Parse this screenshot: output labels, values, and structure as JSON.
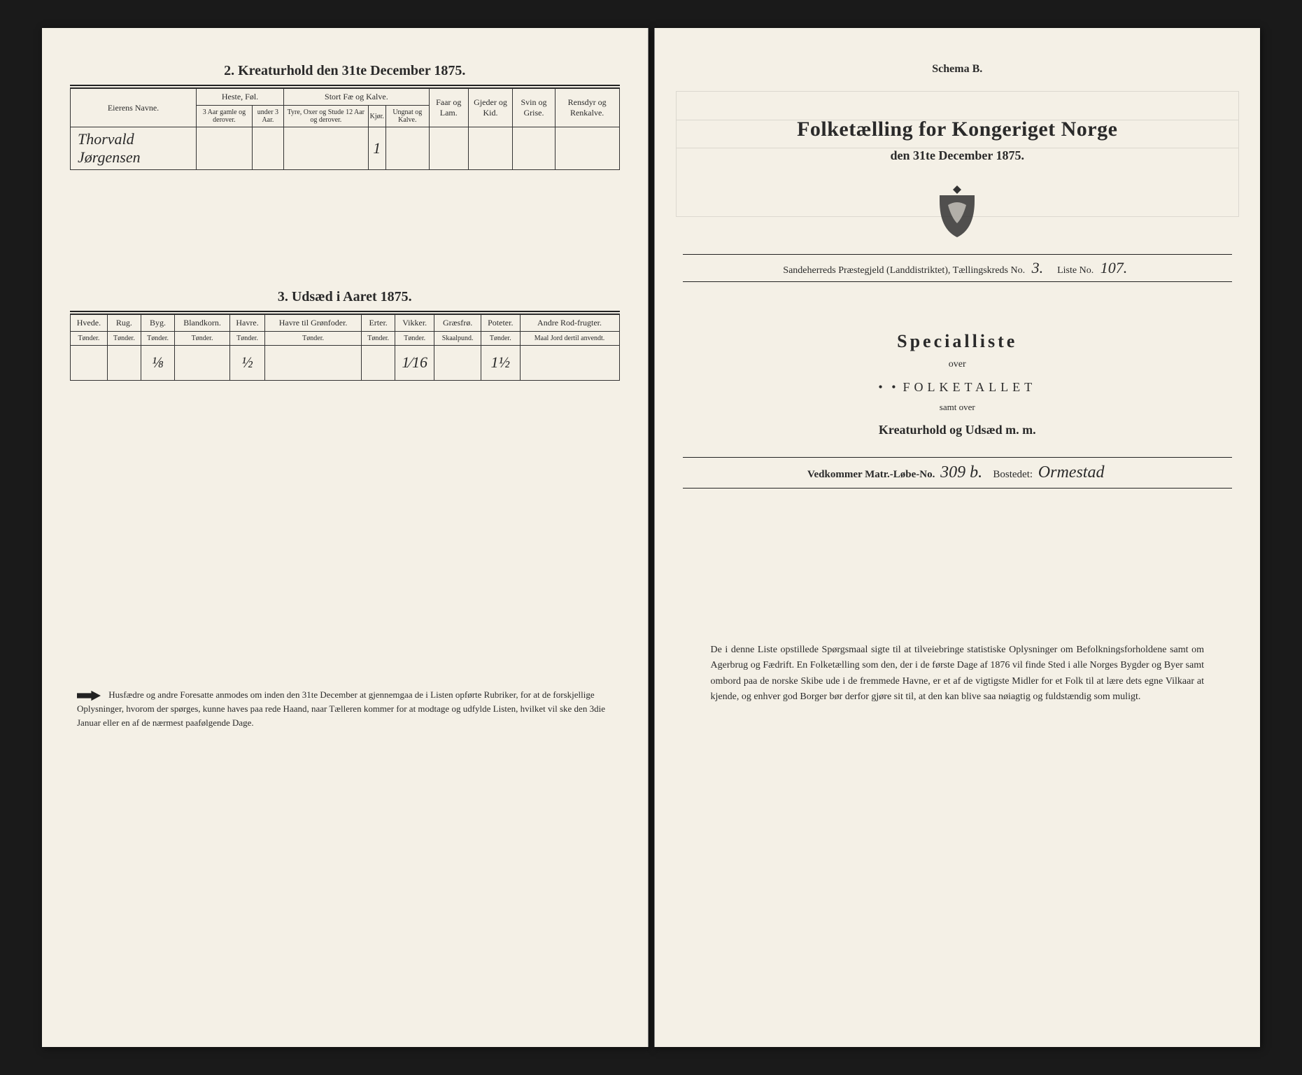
{
  "left": {
    "section2_title": "2.  Kreaturhold den 31te December 1875.",
    "eier_label": "Eierens Navne.",
    "heste_group": "Heste, Føl.",
    "heste_sub1": "3 Aar gamle og derover.",
    "heste_sub2": "under 3 Aar.",
    "stort_group": "Stort Fæ og Kalve.",
    "stort_sub1": "Tyre, Oxer og Stude 12 Aar og derover.",
    "stort_sub2": "Kjør.",
    "stort_sub3": "Ungnat og Kalve.",
    "faar": "Faar og Lam.",
    "gjeder": "Gjeder og Kid.",
    "svin": "Svin og Grise.",
    "rensdyr": "Rensdyr og Renkalve.",
    "owner_name": "Thorvald Jørgensen",
    "kjor_val": "1",
    "section3_title": "3.  Udsæd i Aaret 1875.",
    "crops": [
      {
        "h": "Hvede.",
        "u": "Tønder."
      },
      {
        "h": "Rug.",
        "u": "Tønder."
      },
      {
        "h": "Byg.",
        "u": "Tønder."
      },
      {
        "h": "Blandkorn.",
        "u": "Tønder."
      },
      {
        "h": "Havre.",
        "u": "Tønder."
      },
      {
        "h": "Havre til Grønfoder.",
        "u": "Tønder."
      },
      {
        "h": "Erter.",
        "u": "Tønder."
      },
      {
        "h": "Vikker.",
        "u": "Tønder."
      },
      {
        "h": "Græsfrø.",
        "u": "Skaalpund."
      },
      {
        "h": "Poteter.",
        "u": "Tønder."
      },
      {
        "h": "Andre Rod-frugter.",
        "u": "Maal Jord dertil anvendt."
      }
    ],
    "crop_vals": [
      "",
      "",
      "⅛",
      "",
      "½",
      "",
      "",
      "1⁄16",
      "",
      "1½",
      ""
    ],
    "footnote": "Husfædre og andre Foresatte anmodes om inden den 31te December at gjennemgaa de i Listen opførte Rubriker, for at de forskjellige Oplysninger, hvorom der spørges, kunne haves paa rede Haand, naar Tælleren kommer for at modtage og udfylde Listen, hvilket vil ske den 3die Januar eller en af de nærmest paafølgende Dage."
  },
  "right": {
    "schema": "Schema B.",
    "title1": "Folketælling for Kongeriget Norge",
    "title2": "den 31te December 1875.",
    "meta_prefix": "Sandeherreds Præstegjeld (Landdistriktet), Tællingskreds No.",
    "kreds_no": "3.",
    "liste_label": "Liste No.",
    "liste_no": "107.",
    "special": "Specialliste",
    "over": "over",
    "folket": "Folketallet",
    "samt": "samt over",
    "kreat": "Kreaturhold og Udsæd m. m.",
    "matr_label": "Vedkommer Matr.-Løbe-No.",
    "matr_no": "309 b.",
    "bostedet_label": "Bostedet:",
    "bostedet": "Ormestad",
    "bottom": "De i denne Liste opstillede Spørgsmaal sigte til at tilveiebringe statistiske Oplysninger om Befolkningsforholdene samt om Agerbrug og Fædrift. En Folketælling som den, der i de første Dage af 1876 vil finde Sted i alle Norges Bygder og Byer samt ombord paa de norske Skibe ude i de fremmede Havne, er et af de vigtigste Midler for et Folk til at lære dets egne Vilkaar at kjende, og enhver god Borger bør derfor gjøre sit til, at den kan blive saa nøiagtig og fuldstændig som muligt."
  },
  "colors": {
    "paper": "#f4f0e6",
    "ink": "#2a2a2a",
    "bg": "#1a1a1a"
  }
}
